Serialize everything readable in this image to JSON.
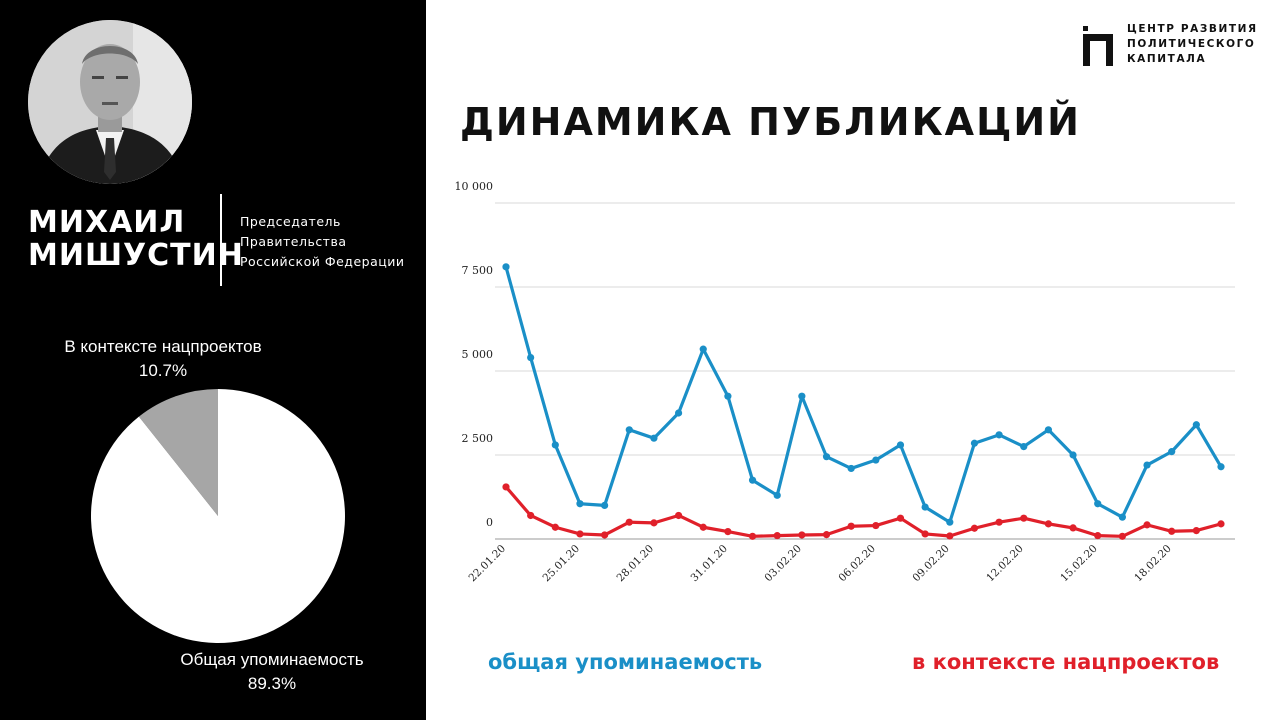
{
  "person": {
    "name_line1": "МИХАИЛ",
    "name_line2": "МИШУСТИН",
    "role_lines": [
      "Председатель",
      "Правительства",
      "Российской Федерации"
    ]
  },
  "logo": {
    "lines": [
      "ЦЕНТР РАЗВИТИЯ",
      "ПОЛИТИЧЕСКОГО",
      "КАПИТАЛА"
    ]
  },
  "pie": {
    "slices": [
      {
        "name": "В контексте нацпроектов",
        "value_label": "10.7%",
        "value": 10.7,
        "color": "#a6a6a6"
      },
      {
        "name": "Общая упоминаемость",
        "value_label": "89.3%",
        "value": 89.3,
        "color": "#ffffff"
      }
    ]
  },
  "legend": {
    "general": "общая упоминаемость",
    "national": "в контексте нацпроектов"
  },
  "colors": {
    "general": "#1a8fc7",
    "national": "#e0202a"
  },
  "chart_data": {
    "type": "line",
    "title": "ДИНАМИКА ПУБЛИКАЦИЙ",
    "ylim": [
      0,
      10000
    ],
    "ytick_labels": [
      "0",
      "2 500",
      "5 000",
      "7 500",
      "10 000"
    ],
    "ytick_values": [
      0,
      2500,
      5000,
      7500,
      10000
    ],
    "grid": true,
    "x": [
      "22.01.20",
      "23.01.20",
      "24.01.20",
      "25.01.20",
      "26.01.20",
      "27.01.20",
      "28.01.20",
      "29.01.20",
      "30.01.20",
      "31.01.20",
      "01.02.20",
      "02.02.20",
      "03.02.20",
      "04.02.20",
      "05.02.20",
      "06.02.20",
      "07.02.20",
      "08.02.20",
      "09.02.20",
      "10.02.20",
      "11.02.20",
      "12.02.20",
      "13.02.20",
      "14.02.20",
      "15.02.20",
      "16.02.20",
      "17.02.20",
      "18.02.20",
      "19.02.20",
      "20.02.20"
    ],
    "xtick_labels": [
      "22.01.20",
      "25.01.20",
      "28.01.20",
      "31.01.20",
      "03.02.20",
      "06.02.20",
      "09.02.20",
      "12.02.20",
      "15.02.20",
      "18.02.20"
    ],
    "series": [
      {
        "name": "общая упоминаемость",
        "values": [
          8100,
          5400,
          2800,
          1050,
          1000,
          3250,
          3000,
          3750,
          5650,
          4250,
          1750,
          1300,
          4250,
          2450,
          2100,
          2350,
          2800,
          950,
          500,
          2850,
          3100,
          2750,
          3250,
          2500,
          1050,
          650,
          2200,
          2600,
          3400,
          2150
        ]
      },
      {
        "name": "в контексте нацпроектов",
        "values": [
          1550,
          700,
          350,
          150,
          120,
          500,
          480,
          700,
          350,
          220,
          80,
          100,
          120,
          130,
          380,
          400,
          620,
          150,
          90,
          320,
          500,
          620,
          450,
          330,
          100,
          80,
          420,
          230,
          250,
          450
        ]
      }
    ]
  }
}
